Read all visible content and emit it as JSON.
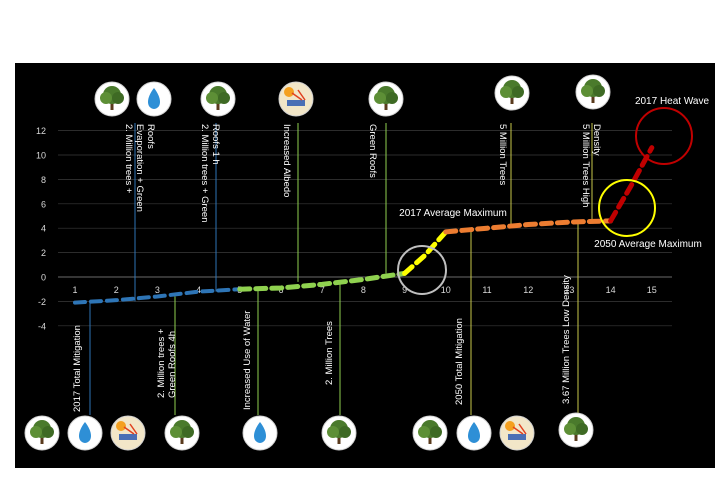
{
  "colors": {
    "background": "#000000",
    "page": "#ffffff",
    "axis_text": "#d9d9d9",
    "grid": "#3a3a3a",
    "blue": "#2e75b6",
    "green": "#8fd14f",
    "yellow": "#ffff00",
    "orange": "#ed7d31",
    "red": "#c00000",
    "heat_wave_circle": "#c00000",
    "avg_max_circle": "#ffff00",
    "step9_circle": "#bfbfbf"
  },
  "chart_data": {
    "type": "line",
    "x_ticks": [
      "1",
      "2",
      "3",
      "4",
      "5",
      "6",
      "7",
      "8",
      "9",
      "10",
      "11",
      "12",
      "13",
      "14",
      "15"
    ],
    "y_ticks": [
      "-4",
      "-2",
      "0",
      "2",
      "4",
      "6",
      "8",
      "10",
      "12"
    ],
    "ylim": [
      -4,
      12
    ],
    "xlim": [
      0.5,
      15.5
    ],
    "grid": true,
    "segments": [
      {
        "color": "blue",
        "points": [
          [
            1,
            -2.1
          ],
          [
            2,
            -1.9
          ],
          [
            3,
            -1.6
          ],
          [
            4,
            -1.2
          ],
          [
            5,
            -1.0
          ]
        ]
      },
      {
        "color": "green",
        "points": [
          [
            5,
            -1.0
          ],
          [
            6,
            -0.9
          ],
          [
            7,
            -0.6
          ],
          [
            8,
            -0.2
          ],
          [
            9,
            0.3
          ]
        ]
      },
      {
        "color": "yellow",
        "points": [
          [
            9,
            0.3
          ],
          [
            9.5,
            1.8
          ],
          [
            10,
            3.7
          ]
        ]
      },
      {
        "color": "orange",
        "points": [
          [
            10,
            3.7
          ],
          [
            11,
            4.0
          ],
          [
            12,
            4.3
          ],
          [
            13,
            4.5
          ],
          [
            14,
            4.6
          ]
        ]
      },
      {
        "color": "red",
        "points": [
          [
            14,
            4.6
          ],
          [
            14.5,
            7.5
          ],
          [
            15,
            10.6
          ]
        ]
      }
    ],
    "annotations": {
      "top": [
        {
          "text": "2. Million trees + Evaporation + Green Roofs",
          "x": 2,
          "icons": [
            "tree-icon",
            "water-drop-icon"
          ]
        },
        {
          "text": "2. Million trees + Green Roofs 1 h",
          "x": 4,
          "icons": [
            "tree-icon"
          ]
        },
        {
          "text": "Increased  Albedo",
          "x": 6,
          "icons": [
            "albedo-icon"
          ]
        },
        {
          "text": "Green Roofs",
          "x": 8.5,
          "icons": [
            "tree-icon"
          ]
        },
        {
          "text": "5 Million Trees",
          "x": 12,
          "icons": [
            "tree-icon"
          ]
        },
        {
          "text": "5 Million Trees High  Density",
          "x": 14,
          "icons": [
            "tree-icon"
          ]
        }
      ],
      "bottom": [
        {
          "text": "2017 Total  Mitigation",
          "x": 1,
          "icons": [
            "tree-icon",
            "water-drop-icon",
            "albedo-icon"
          ]
        },
        {
          "text": "2. Million trees + Green Roofs  4h",
          "x": 3,
          "icons": [
            "tree-icon"
          ]
        },
        {
          "text": "Increased Use of Water",
          "x": 5,
          "icons": [
            "water-drop-icon"
          ]
        },
        {
          "text": "2. Million Trees",
          "x": 7,
          "icons": [
            "tree-icon"
          ]
        },
        {
          "text": "2050 Total  Mitigation",
          "x": 10.5,
          "icons": [
            "tree-icon",
            "water-drop-icon",
            "albedo-icon"
          ]
        },
        {
          "text": "3.67 Million Trees Low  Density",
          "x": 13,
          "icons": [
            "tree-icon"
          ]
        }
      ],
      "callouts": [
        {
          "text": "2017 Heat Wave",
          "circle": "heat_wave_circle"
        },
        {
          "text": "2017 Average Maximum",
          "circle": "step9_circle"
        },
        {
          "text": "2050 Average Maximum",
          "circle": "avg_max_circle"
        }
      ]
    }
  }
}
